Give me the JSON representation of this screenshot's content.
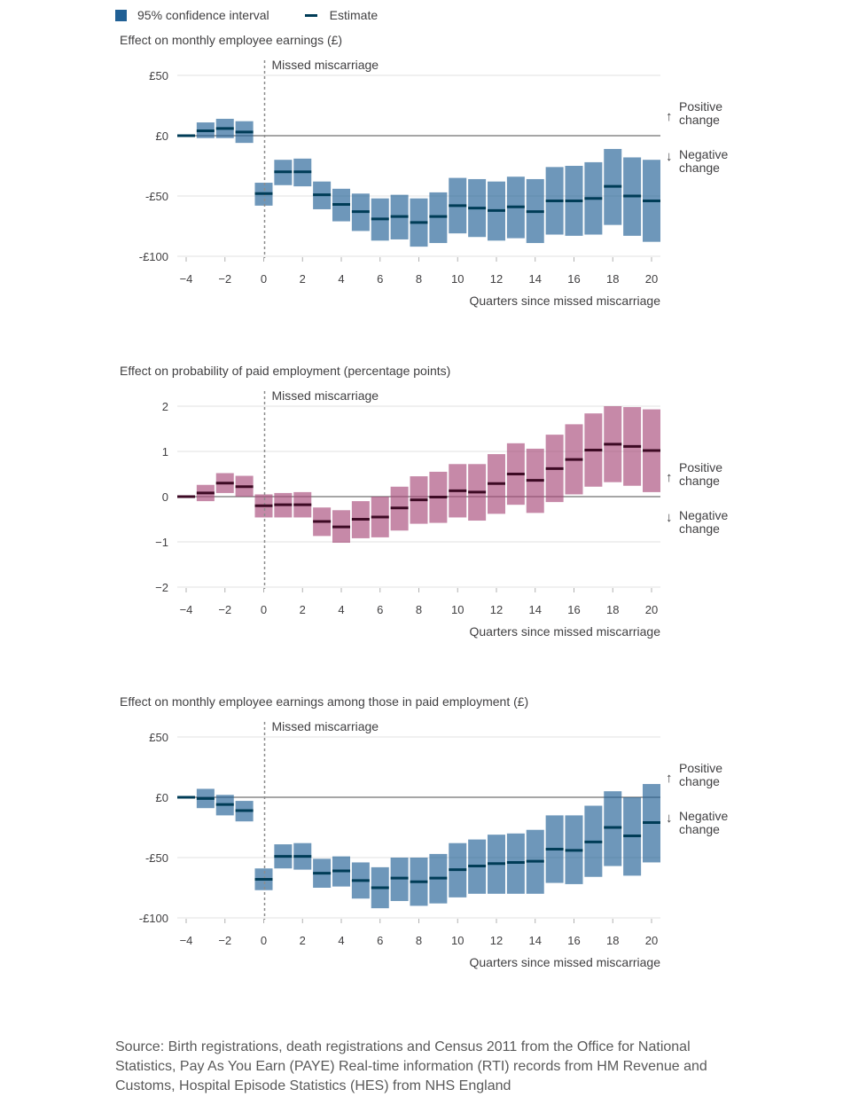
{
  "legend": {
    "ci_label": "95% confidence interval",
    "estimate_label": "Estimate",
    "ci_color": "#206095",
    "estimate_color": "#003c57"
  },
  "chart_data": [
    {
      "type": "interval",
      "title": "Effect on monthly employee earnings (£)",
      "xlabel": "Quarters since missed miscarriage",
      "event_label": "Missed miscarriage",
      "event_x": 0,
      "direction_labels": {
        "positive": "Positive change",
        "negative": "Negative change"
      },
      "ylim": [
        -100,
        50
      ],
      "yticks": [
        50,
        0,
        -50,
        -100
      ],
      "ytick_labels": [
        "£50",
        "£0",
        "-£50",
        "-£100"
      ],
      "xlim": [
        -4,
        20
      ],
      "xticks": [
        -4,
        -2,
        0,
        2,
        4,
        6,
        8,
        10,
        12,
        14,
        16,
        18,
        20
      ],
      "xtick_labels": [
        "−4",
        "−2",
        "0",
        "2",
        "4",
        "6",
        "8",
        "10",
        "12",
        "14",
        "16",
        "18",
        "20"
      ],
      "interval_color": "#206095",
      "estimate_color": "#003c57",
      "points": [
        {
          "x": -4,
          "estimate": 0,
          "low": 0,
          "high": 0
        },
        {
          "x": -3,
          "estimate": 4,
          "low": -2,
          "high": 11
        },
        {
          "x": -2,
          "estimate": 6,
          "low": -2,
          "high": 14
        },
        {
          "x": -1,
          "estimate": 3,
          "low": -6,
          "high": 12
        },
        {
          "x": 0,
          "estimate": -48,
          "low": -58,
          "high": -39
        },
        {
          "x": 1,
          "estimate": -30,
          "low": -41,
          "high": -20
        },
        {
          "x": 2,
          "estimate": -30,
          "low": -42,
          "high": -19
        },
        {
          "x": 3,
          "estimate": -49,
          "low": -61,
          "high": -38
        },
        {
          "x": 4,
          "estimate": -57,
          "low": -71,
          "high": -44
        },
        {
          "x": 5,
          "estimate": -63,
          "low": -79,
          "high": -48
        },
        {
          "x": 6,
          "estimate": -69,
          "low": -87,
          "high": -52
        },
        {
          "x": 7,
          "estimate": -67,
          "low": -86,
          "high": -49
        },
        {
          "x": 8,
          "estimate": -72,
          "low": -92,
          "high": -52
        },
        {
          "x": 9,
          "estimate": -67,
          "low": -89,
          "high": -47
        },
        {
          "x": 10,
          "estimate": -58,
          "low": -81,
          "high": -35
        },
        {
          "x": 11,
          "estimate": -60,
          "low": -84,
          "high": -36
        },
        {
          "x": 12,
          "estimate": -62,
          "low": -87,
          "high": -38
        },
        {
          "x": 13,
          "estimate": -59,
          "low": -85,
          "high": -34
        },
        {
          "x": 14,
          "estimate": -63,
          "low": -89,
          "high": -36
        },
        {
          "x": 15,
          "estimate": -54,
          "low": -82,
          "high": -26
        },
        {
          "x": 16,
          "estimate": -54,
          "low": -83,
          "high": -25
        },
        {
          "x": 17,
          "estimate": -52,
          "low": -82,
          "high": -22
        },
        {
          "x": 18,
          "estimate": -42,
          "low": -74,
          "high": -11
        },
        {
          "x": 19,
          "estimate": -50,
          "low": -83,
          "high": -18
        },
        {
          "x": 20,
          "estimate": -54,
          "low": -88,
          "high": -20
        }
      ]
    },
    {
      "type": "interval",
      "title": "Effect on probability of paid employment (percentage points)",
      "xlabel": "Quarters since missed miscarriage",
      "event_label": "Missed miscarriage",
      "event_x": 0,
      "direction_labels": {
        "positive": "Positive change",
        "negative": "Negative change"
      },
      "ylim": [
        -2,
        2
      ],
      "yticks": [
        2,
        1,
        0,
        -1,
        -2
      ],
      "ytick_labels": [
        "2",
        "1",
        "0",
        "−1",
        "−2"
      ],
      "xlim": [
        -4,
        20
      ],
      "xticks": [
        -4,
        -2,
        0,
        2,
        4,
        6,
        8,
        10,
        12,
        14,
        16,
        18,
        20
      ],
      "xtick_labels": [
        "−4",
        "−2",
        "0",
        "2",
        "4",
        "6",
        "8",
        "10",
        "12",
        "14",
        "16",
        "18",
        "20"
      ],
      "interval_color": "#a8497a",
      "estimate_color": "#3d0a24",
      "points": [
        {
          "x": -4,
          "estimate": 0,
          "low": 0,
          "high": 0
        },
        {
          "x": -3,
          "estimate": 0.08,
          "low": -0.1,
          "high": 0.26
        },
        {
          "x": -2,
          "estimate": 0.3,
          "low": 0.08,
          "high": 0.52
        },
        {
          "x": -1,
          "estimate": 0.22,
          "low": 0.0,
          "high": 0.46
        },
        {
          "x": 0,
          "estimate": -0.2,
          "low": -0.46,
          "high": 0.05
        },
        {
          "x": 1,
          "estimate": -0.18,
          "low": -0.46,
          "high": 0.08
        },
        {
          "x": 2,
          "estimate": -0.18,
          "low": -0.46,
          "high": 0.1
        },
        {
          "x": 3,
          "estimate": -0.55,
          "low": -0.87,
          "high": -0.24
        },
        {
          "x": 4,
          "estimate": -0.67,
          "low": -1.02,
          "high": -0.3
        },
        {
          "x": 5,
          "estimate": -0.5,
          "low": -0.92,
          "high": -0.1
        },
        {
          "x": 6,
          "estimate": -0.45,
          "low": -0.9,
          "high": 0.0
        },
        {
          "x": 7,
          "estimate": -0.25,
          "low": -0.75,
          "high": 0.22
        },
        {
          "x": 8,
          "estimate": -0.07,
          "low": -0.6,
          "high": 0.45
        },
        {
          "x": 9,
          "estimate": -0.01,
          "low": -0.58,
          "high": 0.55
        },
        {
          "x": 10,
          "estimate": 0.13,
          "low": -0.46,
          "high": 0.72
        },
        {
          "x": 11,
          "estimate": 0.1,
          "low": -0.53,
          "high": 0.72
        },
        {
          "x": 12,
          "estimate": 0.29,
          "low": -0.38,
          "high": 0.94
        },
        {
          "x": 13,
          "estimate": 0.5,
          "low": -0.18,
          "high": 1.18
        },
        {
          "x": 14,
          "estimate": 0.36,
          "low": -0.36,
          "high": 1.06
        },
        {
          "x": 15,
          "estimate": 0.62,
          "low": -0.12,
          "high": 1.37
        },
        {
          "x": 16,
          "estimate": 0.82,
          "low": 0.05,
          "high": 1.6
        },
        {
          "x": 17,
          "estimate": 1.03,
          "low": 0.22,
          "high": 1.84
        },
        {
          "x": 18,
          "estimate": 1.16,
          "low": 0.32,
          "high": 2.0
        },
        {
          "x": 19,
          "estimate": 1.11,
          "low": 0.24,
          "high": 1.98
        },
        {
          "x": 20,
          "estimate": 1.02,
          "low": 0.1,
          "high": 1.93
        }
      ]
    },
    {
      "type": "interval",
      "title": "Effect on monthly employee earnings among those in paid employment (£)",
      "xlabel": "Quarters since missed miscarriage",
      "event_label": "Missed miscarriage",
      "event_x": 0,
      "direction_labels": {
        "positive": "Positive change",
        "negative": "Negative change"
      },
      "ylim": [
        -100,
        50
      ],
      "yticks": [
        50,
        0,
        -50,
        -100
      ],
      "ytick_labels": [
        "£50",
        "£0",
        "-£50",
        "-£100"
      ],
      "xlim": [
        -4,
        20
      ],
      "xticks": [
        -4,
        -2,
        0,
        2,
        4,
        6,
        8,
        10,
        12,
        14,
        16,
        18,
        20
      ],
      "xtick_labels": [
        "−4",
        "−2",
        "0",
        "2",
        "4",
        "6",
        "8",
        "10",
        "12",
        "14",
        "16",
        "18",
        "20"
      ],
      "interval_color": "#206095",
      "estimate_color": "#003c57",
      "points": [
        {
          "x": -4,
          "estimate": 0,
          "low": 0,
          "high": 0
        },
        {
          "x": -3,
          "estimate": -1,
          "low": -9,
          "high": 7
        },
        {
          "x": -2,
          "estimate": -6,
          "low": -15,
          "high": 2
        },
        {
          "x": -1,
          "estimate": -11,
          "low": -20,
          "high": -3
        },
        {
          "x": 0,
          "estimate": -68,
          "low": -77,
          "high": -59
        },
        {
          "x": 1,
          "estimate": -49,
          "low": -59,
          "high": -39
        },
        {
          "x": 2,
          "estimate": -49,
          "low": -60,
          "high": -38
        },
        {
          "x": 3,
          "estimate": -63,
          "low": -75,
          "high": -51
        },
        {
          "x": 4,
          "estimate": -61,
          "low": -74,
          "high": -49
        },
        {
          "x": 5,
          "estimate": -69,
          "low": -84,
          "high": -54
        },
        {
          "x": 6,
          "estimate": -75,
          "low": -92,
          "high": -58
        },
        {
          "x": 7,
          "estimate": -67,
          "low": -86,
          "high": -50
        },
        {
          "x": 8,
          "estimate": -70,
          "low": -90,
          "high": -50
        },
        {
          "x": 9,
          "estimate": -67,
          "low": -88,
          "high": -47
        },
        {
          "x": 10,
          "estimate": -60,
          "low": -83,
          "high": -38
        },
        {
          "x": 11,
          "estimate": -57,
          "low": -80,
          "high": -35
        },
        {
          "x": 12,
          "estimate": -55,
          "low": -80,
          "high": -31
        },
        {
          "x": 13,
          "estimate": -54,
          "low": -80,
          "high": -30
        },
        {
          "x": 14,
          "estimate": -53,
          "low": -80,
          "high": -27
        },
        {
          "x": 15,
          "estimate": -43,
          "low": -71,
          "high": -15
        },
        {
          "x": 16,
          "estimate": -44,
          "low": -72,
          "high": -15
        },
        {
          "x": 17,
          "estimate": -37,
          "low": -66,
          "high": -7
        },
        {
          "x": 18,
          "estimate": -25,
          "low": -57,
          "high": 5
        },
        {
          "x": 19,
          "estimate": -32,
          "low": -65,
          "high": 0
        },
        {
          "x": 20,
          "estimate": -21,
          "low": -54,
          "high": 11
        }
      ]
    }
  ],
  "source": "Source: Birth registrations, death registrations and Census 2011 from the Office for National Statistics, Pay As You Earn (PAYE) Real-time information (RTI) records from HM Revenue and Customs, Hospital Episode Statistics (HES) from NHS England"
}
